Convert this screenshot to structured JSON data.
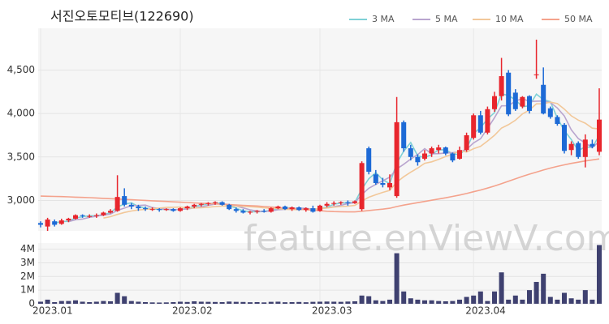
{
  "chart_data": {
    "type": "candlestick",
    "title": "서진오토모티브(122690)",
    "watermark": "feature.enViewV.com",
    "legend": "top-right",
    "categories": [
      "2023.01",
      null,
      null,
      null,
      null,
      null,
      null,
      null,
      null,
      null,
      null,
      null,
      null,
      null,
      null,
      null,
      null,
      null,
      null,
      null,
      "2023.02",
      null,
      null,
      null,
      null,
      null,
      null,
      null,
      null,
      null,
      null,
      null,
      null,
      null,
      null,
      null,
      null,
      null,
      null,
      null,
      "2023.03",
      null,
      null,
      null,
      null,
      null,
      null,
      null,
      null,
      null,
      null,
      null,
      null,
      null,
      null,
      null,
      null,
      null,
      null,
      null,
      null,
      null,
      "2023.04",
      null,
      null,
      null,
      null,
      null,
      null,
      null,
      null,
      null,
      null,
      null,
      null,
      null,
      null,
      null,
      null,
      null,
      null
    ],
    "candles": {
      "up_color": "#e8262d",
      "down_color": "#1d6ad6",
      "open": [
        2740,
        2700,
        2760,
        2730,
        2770,
        2790,
        2830,
        2820,
        2820,
        2830,
        2860,
        2880,
        3050,
        2950,
        2930,
        2910,
        2900,
        2900,
        2890,
        2900,
        2880,
        2910,
        2930,
        2950,
        2960,
        2970,
        2980,
        2950,
        2900,
        2880,
        2860,
        2870,
        2880,
        2870,
        2910,
        2930,
        2900,
        2920,
        2890,
        2910,
        2880,
        2940,
        2960,
        2970,
        2980,
        2970,
        2900,
        3600,
        3300,
        3200,
        3150,
        3050,
        3900,
        3600,
        3500,
        3480,
        3540,
        3580,
        3610,
        3540,
        3480,
        3580,
        3720,
        3980,
        3780,
        4050,
        4200,
        4470,
        4240,
        4080,
        4200,
        4440,
        4330,
        4060,
        3960,
        3870,
        3580,
        3660,
        3500,
        3650,
        3560
      ],
      "high": [
        2760,
        2800,
        2780,
        2790,
        2800,
        2840,
        2840,
        2840,
        2850,
        2870,
        2900,
        3290,
        3140,
        2970,
        2950,
        2930,
        2920,
        2910,
        2910,
        2910,
        2920,
        2940,
        2960,
        2970,
        2980,
        2990,
        2990,
        2960,
        2920,
        2900,
        2880,
        2890,
        2900,
        2920,
        2940,
        2940,
        2930,
        2930,
        2920,
        2940,
        2950,
        2980,
        2990,
        2990,
        3000,
        3000,
        3450,
        3620,
        3350,
        3260,
        3300,
        4190,
        3920,
        3640,
        3530,
        3580,
        3620,
        3640,
        3620,
        3550,
        3620,
        3780,
        4000,
        4030,
        4080,
        4250,
        4640,
        4500,
        4280,
        4200,
        4210,
        4850,
        4530,
        4080,
        3980,
        3890,
        3680,
        3680,
        3760,
        3700,
        4290
      ],
      "low": [
        2690,
        2650,
        2700,
        2720,
        2750,
        2780,
        2800,
        2800,
        2800,
        2820,
        2850,
        2870,
        2930,
        2900,
        2880,
        2880,
        2880,
        2870,
        2880,
        2870,
        2870,
        2890,
        2910,
        2930,
        2940,
        2950,
        2940,
        2890,
        2860,
        2850,
        2840,
        2850,
        2860,
        2860,
        2900,
        2890,
        2880,
        2880,
        2870,
        2860,
        2870,
        2920,
        2940,
        2950,
        2940,
        2960,
        2880,
        3300,
        3180,
        3150,
        3120,
        3030,
        3560,
        3460,
        3400,
        3460,
        3500,
        3540,
        3520,
        3440,
        3470,
        3560,
        3700,
        3760,
        3760,
        4020,
        4150,
        3970,
        4030,
        4060,
        4000,
        4400,
        3990,
        3940,
        3860,
        3540,
        3520,
        3480,
        3380,
        3600,
        3520
      ],
      "close": [
        2720,
        2780,
        2720,
        2770,
        2790,
        2830,
        2820,
        2820,
        2830,
        2860,
        2880,
        3040,
        2950,
        2930,
        2910,
        2900,
        2900,
        2890,
        2900,
        2880,
        2910,
        2930,
        2950,
        2960,
        2970,
        2980,
        2950,
        2900,
        2880,
        2860,
        2870,
        2880,
        2870,
        2910,
        2930,
        2900,
        2920,
        2890,
        2910,
        2870,
        2940,
        2960,
        2970,
        2980,
        2970,
        2990,
        3430,
        3330,
        3200,
        3180,
        3200,
        3900,
        3600,
        3500,
        3440,
        3540,
        3600,
        3610,
        3540,
        3460,
        3580,
        3750,
        3980,
        3780,
        4050,
        4200,
        4430,
        3990,
        4050,
        4190,
        4030,
        4450,
        4000,
        3960,
        3880,
        3570,
        3650,
        3500,
        3700,
        3620,
        3930
      ]
    },
    "series": [
      {
        "name": "3 MA",
        "color": "#7fd1d6",
        "values": [
          null,
          null,
          2740,
          2757,
          2760,
          2797,
          2813,
          2823,
          2823,
          2837,
          2857,
          2927,
          2957,
          2973,
          2930,
          2913,
          2903,
          2897,
          2897,
          2890,
          2897,
          2907,
          2930,
          2947,
          2960,
          2970,
          2967,
          2943,
          2910,
          2880,
          2870,
          2870,
          2873,
          2887,
          2903,
          2913,
          2917,
          2903,
          2907,
          2890,
          2907,
          2923,
          2957,
          2970,
          2973,
          2980,
          3130,
          3250,
          3320,
          3237,
          3193,
          3427,
          3567,
          3667,
          3513,
          3493,
          3527,
          3583,
          3583,
          3537,
          3527,
          3597,
          3770,
          3837,
          3937,
          4010,
          4227,
          4207,
          4157,
          4077,
          4090,
          4223,
          4160,
          4137,
          3947,
          3803,
          3700,
          3573,
          3617,
          3607,
          3750
        ]
      },
      {
        "name": "5 MA",
        "color": "#b9a5cf",
        "values": [
          null,
          null,
          null,
          null,
          2756,
          2778,
          2786,
          2806,
          2818,
          2832,
          2842,
          2886,
          2912,
          2940,
          2942,
          2946,
          2918,
          2906,
          2900,
          2894,
          2896,
          2902,
          2914,
          2926,
          2944,
          2958,
          2962,
          2952,
          2936,
          2914,
          2892,
          2878,
          2872,
          2878,
          2892,
          2898,
          2906,
          2910,
          2910,
          2898,
          2906,
          2914,
          2930,
          2944,
          2964,
          2974,
          3068,
          3140,
          3184,
          3226,
          3268,
          3362,
          3416,
          3476,
          3528,
          3596,
          3536,
          3538,
          3546,
          3550,
          3558,
          3588,
          3662,
          3710,
          3828,
          3952,
          4088,
          4090,
          4144,
          4172,
          4138,
          4142,
          4144,
          4126,
          4064,
          3972,
          3812,
          3712,
          3660,
          3608,
          3680
        ]
      },
      {
        "name": "10 MA",
        "color": "#f2c89a",
        "values": [
          null,
          null,
          null,
          null,
          null,
          null,
          null,
          null,
          null,
          2797,
          2813,
          2839,
          2862,
          2878,
          2890,
          2897,
          2905,
          2912,
          2919,
          2921,
          2924,
          2913,
          2913,
          2916,
          2922,
          2930,
          2935,
          2936,
          2934,
          2932,
          2928,
          2923,
          2915,
          2910,
          2906,
          2898,
          2895,
          2894,
          2897,
          2898,
          2905,
          2913,
          2923,
          2930,
          2934,
          2943,
          2993,
          3037,
          3066,
          3093,
          3116,
          3210,
          3273,
          3325,
          3372,
          3427,
          3444,
          3472,
          3506,
          3534,
          3572,
          3557,
          3595,
          3623,
          3684,
          3750,
          3833,
          3872,
          3923,
          3996,
          4041,
          4111,
          4113,
          4131,
          4114,
          4051,
          3973,
          3924,
          3889,
          3832,
          3822
        ]
      },
      {
        "name": "50 MA",
        "color": "#f4a28c",
        "values": [
          3050,
          3048,
          3046,
          3044,
          3041,
          3038,
          3035,
          3032,
          3028,
          3024,
          3020,
          3016,
          3012,
          3008,
          3004,
          3000,
          2996,
          2992,
          2988,
          2984,
          2980,
          2976,
          2972,
          2968,
          2964,
          2960,
          2956,
          2952,
          2948,
          2944,
          2940,
          2936,
          2930,
          2924,
          2918,
          2912,
          2906,
          2900,
          2894,
          2888,
          2882,
          2876,
          2872,
          2870,
          2868,
          2868,
          2876,
          2884,
          2892,
          2900,
          2910,
          2930,
          2946,
          2960,
          2974,
          2988,
          3002,
          3016,
          3030,
          3046,
          3062,
          3080,
          3100,
          3120,
          3142,
          3166,
          3192,
          3220,
          3248,
          3276,
          3302,
          3326,
          3350,
          3372,
          3392,
          3410,
          3426,
          3440,
          3454,
          3466,
          3478
        ]
      }
    ],
    "ylim": [
      2650,
      4980
    ],
    "yticks": [
      {
        "value": 3000,
        "label": "3,000"
      },
      {
        "value": 3500,
        "label": "3,500"
      },
      {
        "value": 4000,
        "label": "4,000"
      },
      {
        "value": 4500,
        "label": "4,500"
      }
    ],
    "grid": true,
    "volume": {
      "color": "#3f4170",
      "ylim": [
        0,
        4450000
      ],
      "yticks": [
        0,
        {
          "value": 1000000,
          "label": "1M"
        },
        {
          "value": 2000000,
          "label": "2M"
        },
        {
          "value": 3000000,
          "label": "3M"
        },
        {
          "value": 4000000,
          "label": "4M"
        }
      ],
      "values": [
        150000,
        300000,
        120000,
        200000,
        200000,
        250000,
        150000,
        120000,
        150000,
        200000,
        180000,
        800000,
        550000,
        200000,
        150000,
        120000,
        100000,
        90000,
        100000,
        120000,
        150000,
        130000,
        180000,
        150000,
        140000,
        130000,
        120000,
        160000,
        140000,
        130000,
        110000,
        120000,
        100000,
        140000,
        150000,
        110000,
        120000,
        130000,
        110000,
        140000,
        150000,
        160000,
        150000,
        140000,
        160000,
        180000,
        600000,
        550000,
        250000,
        200000,
        300000,
        3700000,
        900000,
        400000,
        300000,
        250000,
        250000,
        200000,
        180000,
        200000,
        300000,
        500000,
        600000,
        900000,
        200000,
        900000,
        2300000,
        300000,
        600000,
        300000,
        1000000,
        1600000,
        2200000,
        500000,
        300000,
        800000,
        400000,
        300000,
        1000000,
        300000,
        4300000
      ]
    }
  }
}
